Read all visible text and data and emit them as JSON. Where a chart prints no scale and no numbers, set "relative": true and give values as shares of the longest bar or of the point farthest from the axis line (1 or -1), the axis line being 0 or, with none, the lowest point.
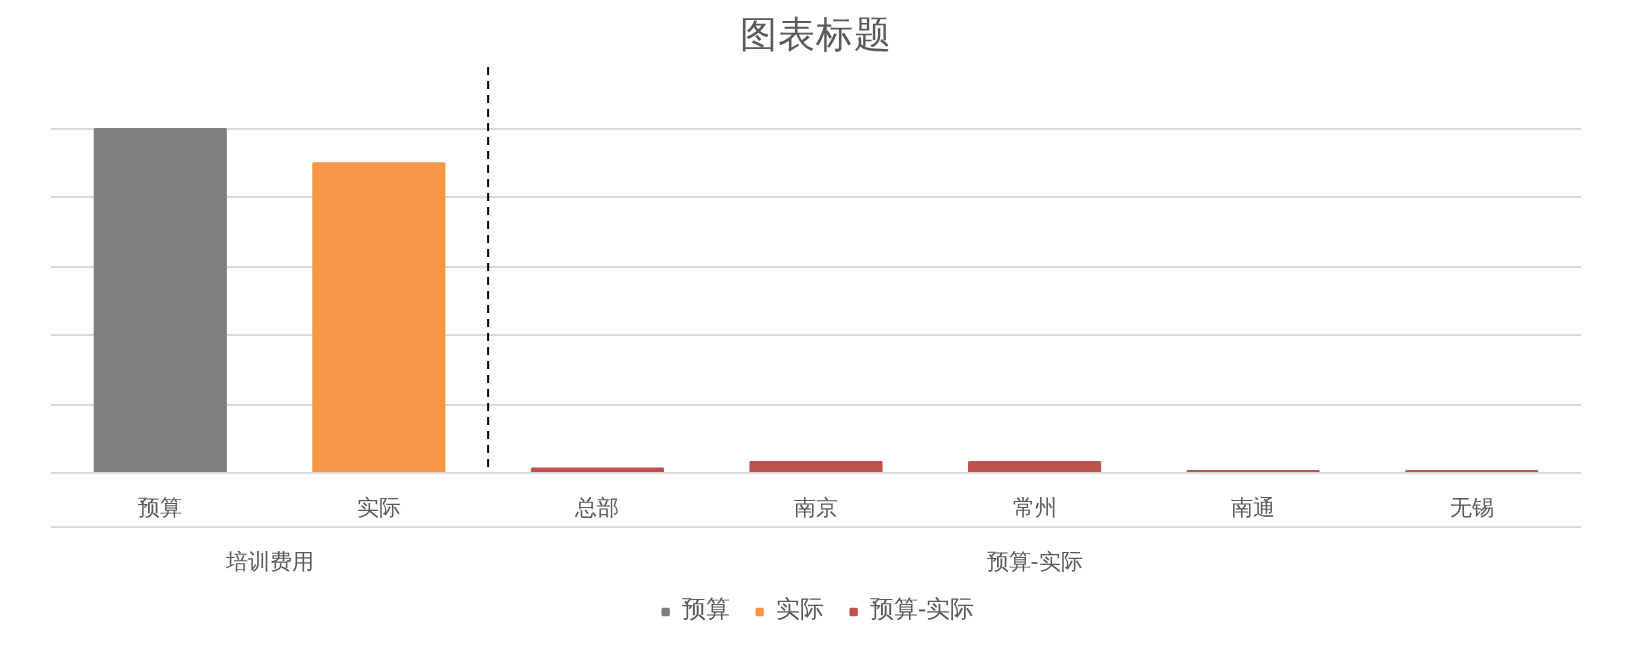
{
  "chart_data": {
    "type": "bar",
    "title": "图表标题",
    "relative": true,
    "categories": [
      "预算",
      "实际",
      "总部",
      "南京",
      "常州",
      "南通",
      "无锡"
    ],
    "series": [
      {
        "name": "预算",
        "color": "#7f7f7f",
        "values": [
          1,
          null,
          null,
          null,
          null,
          null,
          null
        ]
      },
      {
        "name": "实际",
        "color": "#f79646",
        "values": [
          null,
          0.9,
          null,
          null,
          null,
          null,
          null
        ]
      },
      {
        "name": "预算-实际",
        "color": "#c0504d",
        "values": [
          null,
          null,
          0.013,
          0.032,
          0.032,
          0.006,
          0.006
        ]
      }
    ],
    "annotations": [
      "培训费用",
      "预算-实际"
    ],
    "grid": "y",
    "legend": "bottom"
  }
}
